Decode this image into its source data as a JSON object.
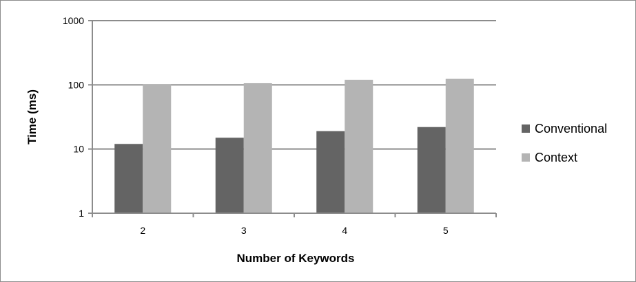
{
  "chart_data": {
    "type": "bar",
    "categories": [
      "2",
      "3",
      "4",
      "5"
    ],
    "series": [
      {
        "name": "Conventional",
        "values": [
          12,
          15,
          19,
          22
        ],
        "color": "#646464"
      },
      {
        "name": "Context",
        "values": [
          103,
          106,
          120,
          124
        ],
        "color": "#b4b4b4"
      }
    ],
    "xlabel": "Number of Keywords",
    "ylabel": "Time (ms)",
    "y_scale": "log",
    "ylim": [
      1,
      1000
    ],
    "y_ticks": [
      {
        "value": 1,
        "label": "1"
      },
      {
        "value": 10,
        "label": "10"
      },
      {
        "value": 100,
        "label": "100"
      },
      {
        "value": 1000,
        "label": "1000"
      }
    ],
    "grid": true,
    "legend_position": "right",
    "gridline_color": "#8c8c8c"
  }
}
